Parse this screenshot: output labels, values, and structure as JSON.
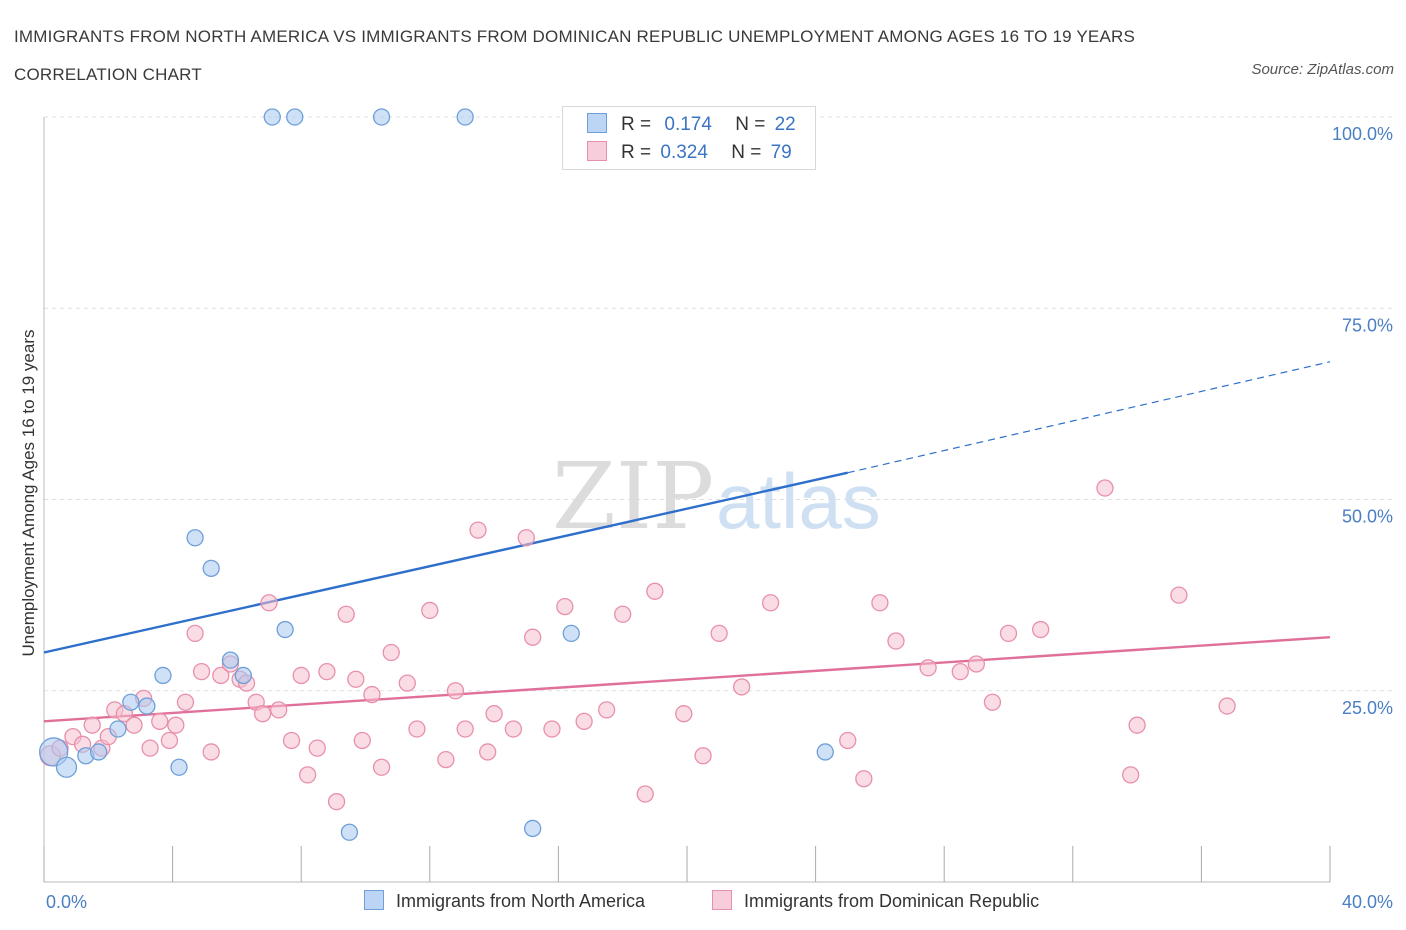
{
  "header": {
    "title": "IMMIGRANTS FROM NORTH AMERICA VS IMMIGRANTS FROM DOMINICAN REPUBLIC UNEMPLOYMENT AMONG AGES 16 TO 19 YEARS CORRELATION CHART",
    "source": "Source: ZipAtlas.com"
  },
  "watermark": {
    "zip": "ZIP",
    "atlas": "atlas"
  },
  "legend": {
    "series1": {
      "r_label": "R =",
      "r_value": "0.174",
      "n_label": "N =",
      "n_value": "22"
    },
    "series2": {
      "r_label": "R =",
      "r_value": "0.324",
      "n_label": "N =",
      "n_value": "79"
    }
  },
  "colors": {
    "blue_fill": "#a8c8f0",
    "blue_stroke": "#6f9fd8",
    "blue_line": "#2e6fcc",
    "pink_fill": "#f6c0d0",
    "pink_stroke": "#e890ab",
    "pink_line": "#e0709a",
    "tick_text": "#4a7fc4",
    "grid": "#e0e0e0"
  },
  "chart_data": {
    "type": "scatter",
    "xlabel": "",
    "ylabel": "Unemployment Among Ages 16 to 19 years",
    "xlim": [
      0,
      40
    ],
    "ylim": [
      0,
      100
    ],
    "x_tick_labels": [
      "0.0%",
      "40.0%"
    ],
    "y_tick_labels": [
      "100.0%",
      "75.0%",
      "50.0%",
      "25.0%"
    ],
    "y_tick_values": [
      100,
      75,
      50,
      25
    ],
    "grid": true,
    "legend_position": "top-center",
    "series": [
      {
        "name": "Immigrants from North America",
        "color": "#a8c8f0",
        "points": [
          [
            0.3,
            17.0,
            2
          ],
          [
            0.7,
            15.0,
            1
          ],
          [
            1.3,
            16.5,
            0
          ],
          [
            1.7,
            17.0,
            0
          ],
          [
            2.3,
            20.0,
            0
          ],
          [
            2.7,
            23.5,
            0
          ],
          [
            3.2,
            23.0,
            0
          ],
          [
            3.7,
            27.0,
            0
          ],
          [
            4.2,
            15.0,
            0
          ],
          [
            4.7,
            45.0,
            0
          ],
          [
            5.2,
            41.0,
            0
          ],
          [
            5.8,
            29.0,
            0
          ],
          [
            6.2,
            27.0,
            0
          ],
          [
            7.1,
            100.0,
            0
          ],
          [
            7.5,
            33.0,
            0
          ],
          [
            7.8,
            100.0,
            0
          ],
          [
            9.5,
            6.5,
            0
          ],
          [
            10.5,
            100.0,
            0
          ],
          [
            13.1,
            100.0,
            0
          ],
          [
            15.2,
            7.0,
            0
          ],
          [
            16.4,
            32.5,
            0
          ],
          [
            24.3,
            17.0,
            0
          ]
        ],
        "trend": {
          "x0": 0,
          "y0": 30.0,
          "x1": 25,
          "y1": 53.5,
          "dash_to_x": 40,
          "dash_to_y": 68.0
        }
      },
      {
        "name": "Immigrants from Dominican Republic",
        "color": "#f6c0d0",
        "points": [
          [
            0.2,
            16.5,
            1
          ],
          [
            0.5,
            17.5,
            0
          ],
          [
            0.9,
            19.0,
            0
          ],
          [
            1.2,
            18.0,
            0
          ],
          [
            1.5,
            20.5,
            0
          ],
          [
            1.8,
            17.5,
            0
          ],
          [
            2.0,
            19.0,
            0
          ],
          [
            2.2,
            22.5,
            0
          ],
          [
            2.5,
            22.0,
            0
          ],
          [
            2.8,
            20.5,
            0
          ],
          [
            3.1,
            24.0,
            0
          ],
          [
            3.3,
            17.5,
            0
          ],
          [
            3.6,
            21.0,
            0
          ],
          [
            3.9,
            18.5,
            0
          ],
          [
            4.1,
            20.5,
            0
          ],
          [
            4.4,
            23.5,
            0
          ],
          [
            4.7,
            32.5,
            0
          ],
          [
            4.9,
            27.5,
            0
          ],
          [
            5.2,
            17.0,
            0
          ],
          [
            5.5,
            27.0,
            0
          ],
          [
            5.8,
            28.5,
            0
          ],
          [
            6.1,
            26.5,
            0
          ],
          [
            6.3,
            26.0,
            0
          ],
          [
            6.6,
            23.5,
            0
          ],
          [
            6.8,
            22.0,
            0
          ],
          [
            7.0,
            36.5,
            0
          ],
          [
            7.3,
            22.5,
            0
          ],
          [
            7.7,
            18.5,
            0
          ],
          [
            8.0,
            27.0,
            0
          ],
          [
            8.2,
            14.0,
            0
          ],
          [
            8.5,
            17.5,
            0
          ],
          [
            8.8,
            27.5,
            0
          ],
          [
            9.1,
            10.5,
            0
          ],
          [
            9.4,
            35.0,
            0
          ],
          [
            9.7,
            26.5,
            0
          ],
          [
            9.9,
            18.5,
            0
          ],
          [
            10.2,
            24.5,
            0
          ],
          [
            10.5,
            15.0,
            0
          ],
          [
            10.8,
            30.0,
            0
          ],
          [
            11.3,
            26.0,
            0
          ],
          [
            11.6,
            20.0,
            0
          ],
          [
            12.0,
            35.5,
            0
          ],
          [
            12.5,
            16.0,
            0
          ],
          [
            12.8,
            25.0,
            0
          ],
          [
            13.1,
            20.0,
            0
          ],
          [
            13.5,
            46.0,
            0
          ],
          [
            13.8,
            17.0,
            0
          ],
          [
            14.0,
            22.0,
            0
          ],
          [
            14.6,
            20.0,
            0
          ],
          [
            15.0,
            45.0,
            0
          ],
          [
            15.2,
            32.0,
            0
          ],
          [
            15.8,
            20.0,
            0
          ],
          [
            16.2,
            36.0,
            0
          ],
          [
            16.8,
            21.0,
            0
          ],
          [
            17.5,
            22.5,
            0
          ],
          [
            18.0,
            35.0,
            0
          ],
          [
            18.7,
            11.5,
            0
          ],
          [
            19.0,
            38.0,
            0
          ],
          [
            19.9,
            22.0,
            0
          ],
          [
            20.5,
            16.5,
            0
          ],
          [
            21.0,
            32.5,
            0
          ],
          [
            21.7,
            25.5,
            0
          ],
          [
            22.6,
            36.5,
            0
          ],
          [
            25.0,
            18.5,
            0
          ],
          [
            25.5,
            13.5,
            0
          ],
          [
            26.0,
            36.5,
            0
          ],
          [
            26.5,
            31.5,
            0
          ],
          [
            27.5,
            28.0,
            0
          ],
          [
            28.5,
            27.5,
            0
          ],
          [
            29.0,
            28.5,
            0
          ],
          [
            29.5,
            23.5,
            0
          ],
          [
            30.0,
            32.5,
            0
          ],
          [
            31.0,
            33.0,
            0
          ],
          [
            33.0,
            51.5,
            0
          ],
          [
            33.8,
            14.0,
            0
          ],
          [
            34.0,
            20.5,
            0
          ],
          [
            35.3,
            37.5,
            0
          ],
          [
            36.8,
            23.0,
            0
          ]
        ],
        "trend": {
          "x0": 0,
          "y0": 21.0,
          "x1": 40,
          "y1": 32.0
        }
      }
    ]
  },
  "bottom_legend": {
    "item1": "Immigrants from North America",
    "item2": "Immigrants from Dominican Republic"
  }
}
